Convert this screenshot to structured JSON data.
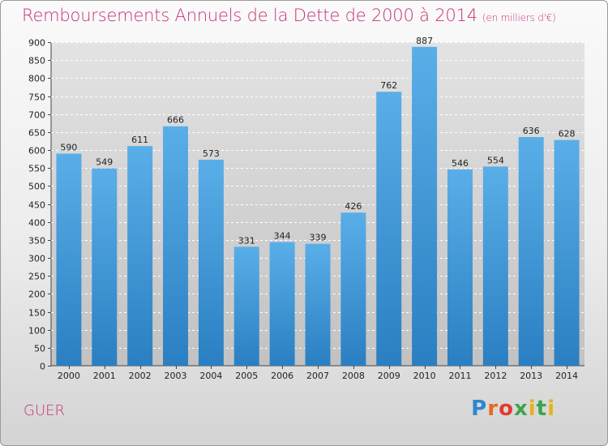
{
  "header": {
    "title": "Remboursements Annuels de la Dette de 2000 à 2014",
    "unit": "(en milliers d'€)"
  },
  "footer": {
    "city": "GUER",
    "brand_parts": [
      "P",
      "r",
      "o",
      "x",
      "i",
      "t",
      "i"
    ]
  },
  "colors": {
    "title": "#c8307a",
    "bar_top": "#5aaee8",
    "bar_bottom": "#2a7fc2",
    "plot_bg": "#cfcfcf"
  },
  "chart_data": {
    "type": "bar",
    "categories": [
      "2000",
      "2001",
      "2002",
      "2003",
      "2004",
      "2005",
      "2006",
      "2007",
      "2008",
      "2009",
      "2010",
      "2011",
      "2012",
      "2013",
      "2014"
    ],
    "values": [
      590,
      549,
      611,
      666,
      573,
      331,
      344,
      339,
      426,
      762,
      887,
      546,
      554,
      636,
      628
    ],
    "ylim": [
      0,
      900
    ],
    "yticks": [
      0,
      50,
      100,
      150,
      200,
      250,
      300,
      350,
      400,
      450,
      500,
      550,
      600,
      650,
      700,
      750,
      800,
      850,
      900
    ],
    "grid": true
  }
}
